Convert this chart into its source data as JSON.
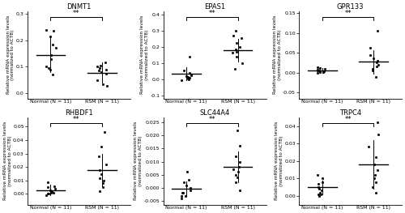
{
  "panels": [
    {
      "title": "DNMT1",
      "ylim": [
        -0.02,
        0.31
      ],
      "yticks": [
        0.0,
        0.1,
        0.2,
        0.3
      ],
      "ytick_labels": [
        "0.0",
        "0.1",
        "0.2",
        "0.3"
      ],
      "group1_mean": 0.145,
      "group1_sd": 0.065,
      "group2_mean": 0.077,
      "group2_sd": 0.038,
      "group1_points": [
        0.24,
        0.235,
        0.215,
        0.185,
        0.17,
        0.145,
        0.13,
        0.1,
        0.095,
        0.09,
        0.07
      ],
      "group2_points": [
        0.115,
        0.105,
        0.1,
        0.095,
        0.09,
        0.085,
        0.08,
        0.075,
        0.05,
        0.035,
        0.028
      ],
      "sig": "**"
    },
    {
      "title": "EPAS1",
      "ylim": [
        -0.12,
        0.42
      ],
      "yticks": [
        -0.1,
        0.0,
        0.1,
        0.2,
        0.3,
        0.4
      ],
      "ytick_labels": [
        "-0.1",
        "0.0",
        "0.1",
        "0.2",
        "0.3",
        "0.4"
      ],
      "group1_mean": 0.035,
      "group1_sd": 0.04,
      "group2_mean": 0.178,
      "group2_sd": 0.072,
      "group1_points": [
        0.14,
        0.055,
        0.04,
        0.03,
        0.025,
        0.02,
        0.015,
        0.01,
        0.005,
        0.0,
        -0.005
      ],
      "group2_points": [
        0.3,
        0.27,
        0.255,
        0.225,
        0.2,
        0.185,
        0.17,
        0.165,
        0.14,
        0.1,
        0.065
      ],
      "sig": "**"
    },
    {
      "title": "GPR133",
      "ylim": [
        -0.065,
        0.155
      ],
      "yticks": [
        -0.05,
        0.0,
        0.05,
        0.1,
        0.15
      ],
      "ytick_labels": [
        "-0.05",
        "0.00",
        "0.05",
        "0.10",
        "0.15"
      ],
      "group1_mean": 0.005,
      "group1_sd": 0.006,
      "group2_mean": 0.027,
      "group2_sd": 0.03,
      "group1_points": [
        0.013,
        0.012,
        0.01,
        0.008,
        0.006,
        0.005,
        0.004,
        0.003,
        0.002,
        0.001,
        0.0
      ],
      "group2_points": [
        0.105,
        0.062,
        0.045,
        0.037,
        0.03,
        0.025,
        0.02,
        0.015,
        0.01,
        0.005,
        -0.01
      ],
      "sig": "**"
    },
    {
      "title": "RHBDF1",
      "ylim": [
        -0.008,
        0.057
      ],
      "yticks": [
        0.0,
        0.01,
        0.02,
        0.03,
        0.04,
        0.05
      ],
      "ytick_labels": [
        "0.00",
        "0.01",
        "0.02",
        "0.03",
        "0.04",
        "0.05"
      ],
      "group1_mean": 0.003,
      "group1_sd": 0.004,
      "group2_mean": 0.018,
      "group2_sd": 0.012,
      "group1_points": [
        0.009,
        0.006,
        0.005,
        0.004,
        0.003,
        0.002,
        0.001,
        0.001,
        0.0,
        0.0,
        -0.001
      ],
      "group2_points": [
        0.046,
        0.035,
        0.028,
        0.022,
        0.018,
        0.015,
        0.012,
        0.01,
        0.008,
        0.005,
        0.002
      ],
      "sig": "**"
    },
    {
      "title": "SLC44A4",
      "ylim": [
        -0.0065,
        0.027
      ],
      "yticks": [
        -0.005,
        0.0,
        0.005,
        0.01,
        0.015,
        0.02,
        0.025
      ],
      "ytick_labels": [
        "-0.005",
        "0.000",
        "0.005",
        "0.010",
        "0.015",
        "0.020",
        "0.025"
      ],
      "group1_mean": -0.0005,
      "group1_sd": 0.0028,
      "group2_mean": 0.008,
      "group2_sd": 0.006,
      "group1_points": [
        0.006,
        0.003,
        0.002,
        0.001,
        0.0,
        -0.001,
        -0.002,
        -0.002,
        -0.003,
        -0.003,
        -0.004
      ],
      "group2_points": [
        0.022,
        0.016,
        0.012,
        0.01,
        0.008,
        0.007,
        0.006,
        0.005,
        0.004,
        0.002,
        -0.001
      ],
      "sig": "**"
    },
    {
      "title": "TRPC4",
      "ylim": [
        -0.005,
        0.045
      ],
      "yticks": [
        0.0,
        0.01,
        0.02,
        0.03,
        0.04
      ],
      "ytick_labels": [
        "0.00",
        "0.01",
        "0.02",
        "0.03",
        "0.04"
      ],
      "group1_mean": 0.005,
      "group1_sd": 0.004,
      "group2_mean": 0.018,
      "group2_sd": 0.014,
      "group1_points": [
        0.012,
        0.01,
        0.008,
        0.007,
        0.005,
        0.004,
        0.003,
        0.002,
        0.001,
        0.001,
        0.0
      ],
      "group2_points": [
        0.042,
        0.035,
        0.028,
        0.022,
        0.018,
        0.015,
        0.012,
        0.01,
        0.008,
        0.005,
        0.002
      ],
      "sig": "**"
    }
  ],
  "xlabel_normal": "Normal (N = 11)",
  "xlabel_rsm": "RSM (N = 11)",
  "ylabel": "Relative mRNA expression levels\n(normalized to ACTB)",
  "dot_color": "#000000",
  "line_color": "#000000",
  "background": "#ffffff"
}
